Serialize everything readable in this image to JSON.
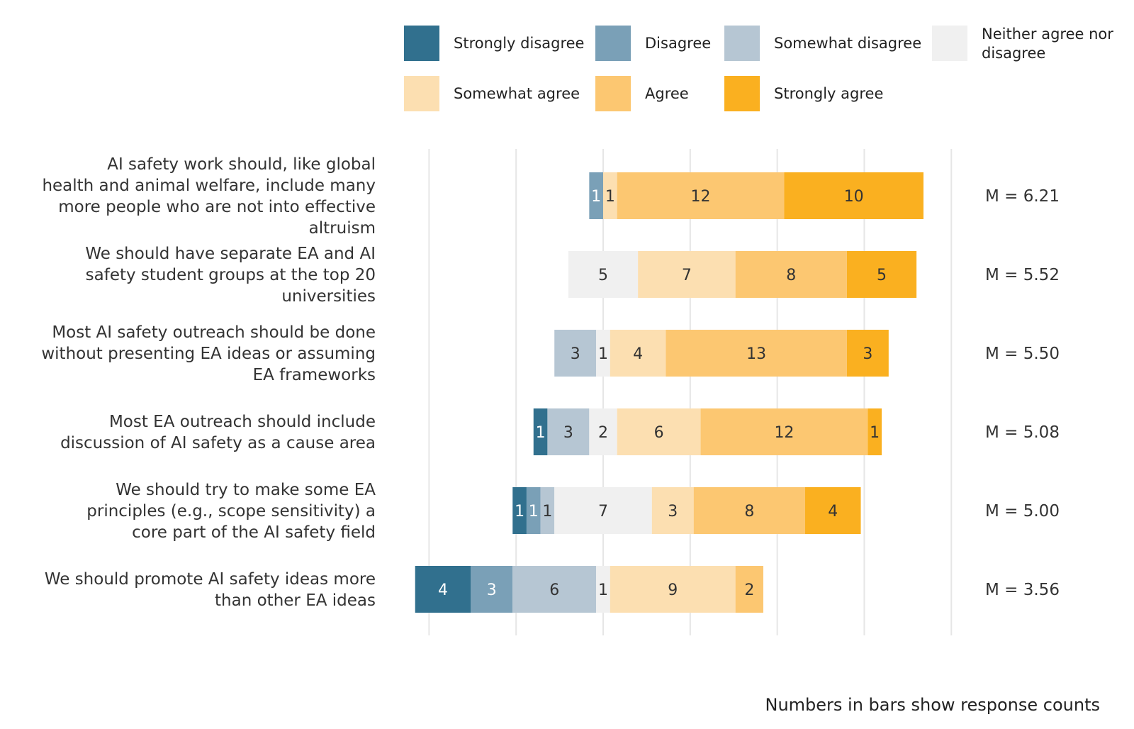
{
  "chart_data": {
    "type": "bar",
    "orientation": "horizontal",
    "stacked": true,
    "diverging": true,
    "legend": {
      "position": "top-right",
      "items": [
        {
          "name": "Strongly disagree",
          "color": "#31708e"
        },
        {
          "name": "Disagree",
          "color": "#7aa0b7"
        },
        {
          "name": "Somewhat disagree",
          "color": "#b6c6d3"
        },
        {
          "name": "Neither agree nor|disagree",
          "color": "#f0f0f0"
        },
        {
          "name": "Somewhat agree",
          "color": "#fcdfb1"
        },
        {
          "name": "Agree",
          "color": "#fcc771"
        },
        {
          "name": "Strongly agree",
          "color": "#fab020"
        }
      ]
    },
    "categories": [
      "AI safety work should, like global|health and animal welfare, include many|more people who are not into effective|altruism",
      "We should have separate EA and AI|safety student groups at the top 20|universities",
      "Most AI safety outreach should be done|without presenting EA ideas or assuming|EA frameworks",
      "Most EA outreach should include|discussion of AI safety as a cause area",
      "We should try to make some EA|principles (e.g., scope sensitivity) a|core part of the AI safety field",
      "We should promote AI safety ideas more|than other EA ideas"
    ],
    "counts": [
      [
        0,
        1,
        0,
        0,
        1,
        12,
        10
      ],
      [
        0,
        0,
        0,
        5,
        7,
        8,
        5
      ],
      [
        0,
        0,
        3,
        1,
        4,
        13,
        3
      ],
      [
        1,
        0,
        3,
        2,
        6,
        12,
        1
      ],
      [
        1,
        1,
        1,
        7,
        3,
        8,
        4
      ],
      [
        4,
        3,
        6,
        1,
        9,
        2,
        0
      ]
    ],
    "means": [
      "M = 6.21",
      "M = 5.52",
      "M = 5.50",
      "M = 5.08",
      "M = 5.00",
      "M = 3.56"
    ],
    "xlim": [
      -12.5,
      25
    ],
    "grid": true,
    "note": "Numbers in bars show response counts"
  }
}
